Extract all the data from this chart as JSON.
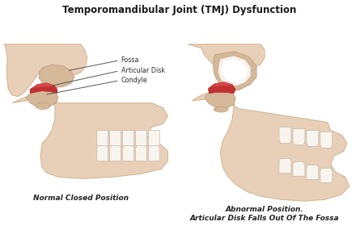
{
  "title": "Temporomandibular Joint (TMJ) Dysfunction",
  "title_fontsize": 8.5,
  "title_fontweight": "bold",
  "bg_color": "#ffffff",
  "bone_fill": "#e8d0b8",
  "bone_mid": "#d4b898",
  "bone_dark": "#c09878",
  "red_color": "#c03030",
  "red_light": "#e05050",
  "tooth_color": "#f8f4ee",
  "tooth_outline": "#c8b8a8",
  "label_fossa": "Fossa",
  "label_disk": "Articular Disk",
  "label_condyle": "Condyle",
  "caption_left": "Normal Closed Position",
  "caption_right": "Abnormal Position.\nArticular Disk Falls Out Of The Fossa",
  "caption_fontsize": 6.5,
  "caption_fontweight": "bold",
  "annot_fontsize": 5.8,
  "line_color": "#555555"
}
